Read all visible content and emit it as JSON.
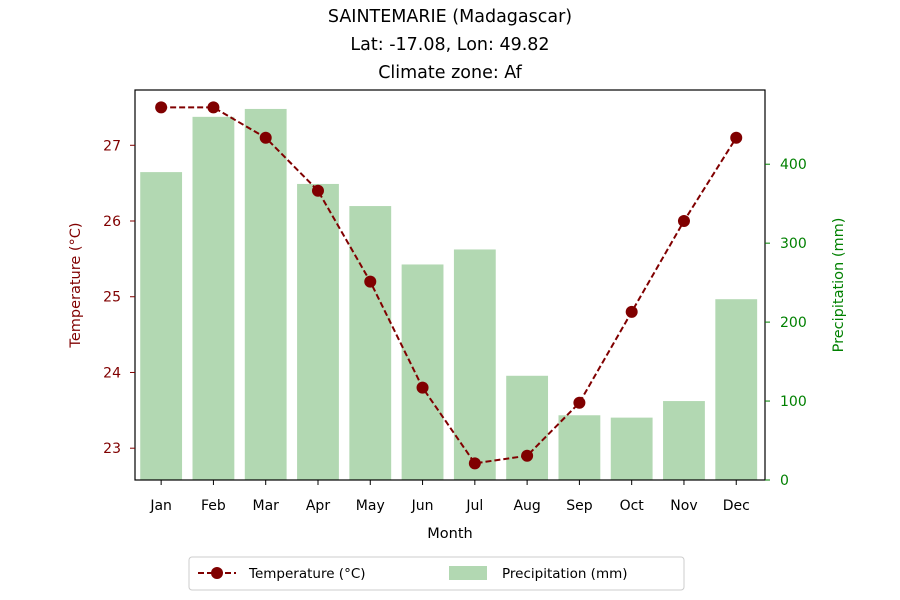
{
  "chart_data": {
    "type": "bar+line",
    "title_lines": [
      "SAINTEMARIE (Madagascar)",
      "Lat: -17.08, Lon: 49.82",
      "Climate zone: Af"
    ],
    "xlabel": "Month",
    "categories": [
      "Jan",
      "Feb",
      "Mar",
      "Apr",
      "May",
      "Jun",
      "Jul",
      "Aug",
      "Sep",
      "Oct",
      "Nov",
      "Dec"
    ],
    "temperature": {
      "name": "Temperature (°C)",
      "axis_label": "Temperature (°C)",
      "values": [
        27.5,
        27.5,
        27.1,
        26.4,
        25.2,
        23.8,
        22.8,
        22.9,
        23.6,
        24.8,
        26.0,
        27.1
      ],
      "ylim": [
        22.58,
        27.73
      ],
      "ticks": [
        23,
        24,
        25,
        26,
        27
      ],
      "color": "#800000"
    },
    "precipitation": {
      "name": "Precipitation (mm)",
      "axis_label": "Precipitation (mm)",
      "values": [
        390,
        460,
        470,
        375,
        347,
        273,
        292,
        132,
        82,
        79,
        100,
        229
      ],
      "ylim": [
        0,
        494
      ],
      "ticks": [
        0,
        100,
        200,
        300,
        400
      ],
      "color": "#b2d8b2"
    },
    "left_axis_color": "#800000",
    "right_axis_color": "#008000",
    "legend_position": "bottom-center"
  }
}
